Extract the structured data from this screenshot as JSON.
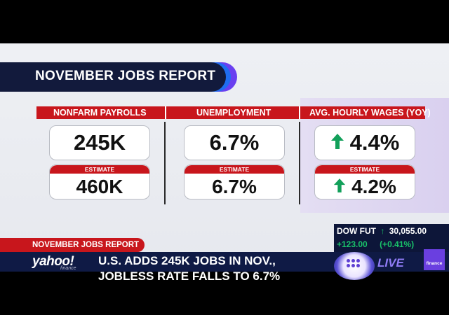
{
  "title": "NOVEMBER JOBS REPORT",
  "columns": [
    {
      "header": "NONFARM PAYROLLS",
      "actual": "245K",
      "estimate_label": "ESTIMATE",
      "estimate": "460K",
      "arrow": false
    },
    {
      "header": "UNEMPLOYMENT",
      "actual": "6.7%",
      "estimate_label": "ESTIMATE",
      "estimate": "6.7%",
      "arrow": false
    },
    {
      "header": "AVG. HOURLY WAGES (YOY)",
      "actual": "4.4%",
      "estimate_label": "ESTIMATE",
      "estimate": "4.2%",
      "arrow": true
    }
  ],
  "icons": {
    "up_arrow": "up-arrow-icon"
  },
  "lower_third": {
    "tag": "NOVEMBER JOBS REPORT",
    "brand": "yahoo!",
    "brand_sub": "finance",
    "headline": "U.S. ADDS 245K JOBS IN NOV.,\nJOBLESS RATE FALLS TO 6.7%",
    "live": "LIVE",
    "badge": "finance"
  },
  "market": {
    "label": "DOW FUT",
    "value": "30,055.00",
    "change": "+123.00",
    "change_pct": "(+0.41%)"
  },
  "colors": {
    "accent_red": "#c8161c",
    "navy": "#121a3c",
    "positive_green": "#12a05a"
  }
}
